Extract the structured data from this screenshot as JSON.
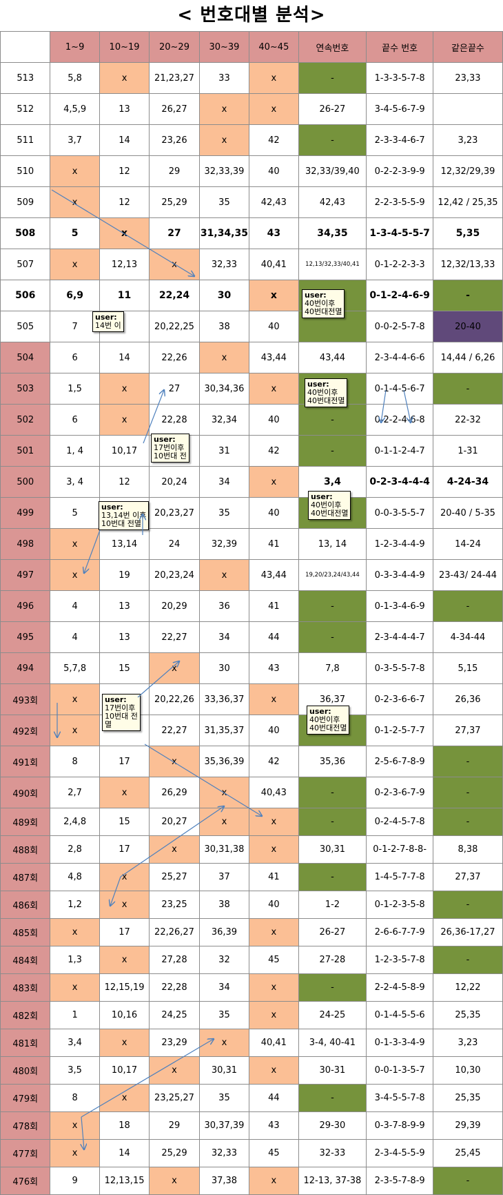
{
  "title": "< 번호대별 분석>",
  "headers": [
    "",
    "1~9",
    "10~19",
    "20~29",
    "30~39",
    "40~45",
    "연속번호",
    "끝수 번호",
    "같은끝수"
  ],
  "rows": [
    {
      "draw": "513",
      "cells": [
        "5,8",
        "x",
        "21,23,27",
        "33",
        "x",
        "-",
        "1-3-3-5-7-8",
        "23,33"
      ],
      "fills": [
        "",
        "p",
        "",
        "",
        "p",
        "g",
        "",
        ""
      ]
    },
    {
      "draw": "512",
      "cells": [
        "4,5,9",
        "13",
        "26,27",
        "x",
        "x",
        "26-27",
        "3-4-5-6-7-9",
        ""
      ],
      "fills": [
        "",
        "",
        "",
        "p",
        "p",
        "",
        "",
        ""
      ]
    },
    {
      "draw": "511",
      "cells": [
        "3,7",
        "14",
        "23,26",
        "x",
        "42",
        "-",
        "2-3-3-4-6-7",
        "3,23"
      ],
      "fills": [
        "",
        "",
        "",
        "p",
        "",
        "g",
        "",
        ""
      ]
    },
    {
      "draw": "510",
      "cells": [
        "x",
        "12",
        "29",
        "32,33,39",
        "40",
        "32,33/39,40",
        "0-2-2-3-9-9",
        "12,32/29,39"
      ],
      "fills": [
        "p",
        "",
        "",
        "",
        "",
        "",
        "",
        ""
      ]
    },
    {
      "draw": "509",
      "cells": [
        "x",
        "12",
        "25,29",
        "35",
        "42,43",
        "42,43",
        "2-2-3-5-5-9",
        "12,42 / 25,35"
      ],
      "fills": [
        "p",
        "",
        "",
        "",
        "",
        "",
        "",
        ""
      ]
    },
    {
      "draw": "508",
      "cells": [
        "5",
        "x",
        "27",
        "31,34,35",
        "43",
        "34,35",
        "1-3-4-5-5-7",
        "5,35"
      ],
      "fills": [
        "",
        "p",
        "",
        "",
        "",
        "",
        "",
        ""
      ],
      "bold": true
    },
    {
      "draw": "507",
      "cells": [
        "x",
        "12,13",
        "x",
        "32,33",
        "40,41",
        "12,13/32,33/40,41",
        "0-1-2-2-3-3",
        "12,32/13,33"
      ],
      "fills": [
        "p",
        "",
        "p",
        "",
        "",
        "",
        "",
        ""
      ],
      "small": [
        5
      ]
    },
    {
      "draw": "506",
      "cells": [
        "6,9",
        "11",
        "22,24",
        "30",
        "x",
        "",
        "0-1-2-4-6-9",
        "-"
      ],
      "fills": [
        "",
        "",
        "",
        "",
        "p",
        "g",
        "",
        "g"
      ],
      "bold": true
    },
    {
      "draw": "505",
      "cells": [
        "7",
        "",
        "20,22,25",
        "38",
        "40",
        "",
        "0-0-2-5-7-8",
        "20-40"
      ],
      "fills": [
        "",
        "",
        "",
        "",
        "",
        "g",
        "",
        "v"
      ]
    },
    {
      "draw": "504",
      "cells": [
        "6",
        "14",
        "22,26",
        "x",
        "43,44",
        "43,44",
        "2-3-4-4-6-6",
        "14,44 / 6,26"
      ],
      "fills": [
        "",
        "",
        "",
        "p",
        "",
        "",
        "",
        ""
      ],
      "pink": true
    },
    {
      "draw": "503",
      "cells": [
        "1,5",
        "x",
        "27",
        "30,34,36",
        "x",
        "",
        "0-1-4-5-6-7",
        "-"
      ],
      "fills": [
        "",
        "p",
        "",
        "",
        "p",
        "g",
        "",
        "g"
      ],
      "pink": true
    },
    {
      "draw": "502",
      "cells": [
        "6",
        "x",
        "22,28",
        "32,34",
        "40",
        "-",
        "0-2-2-4-6-8",
        "22-32"
      ],
      "fills": [
        "",
        "p",
        "",
        "",
        "",
        "g",
        "",
        ""
      ],
      "pink": true
    },
    {
      "draw": "501",
      "cells": [
        "1,  4",
        "10,17",
        "",
        "31",
        "42",
        "-",
        "0-1-1-2-4-7",
        "1-31"
      ],
      "fills": [
        "",
        "",
        "",
        "",
        "",
        "g",
        "",
        ""
      ],
      "pink": true
    },
    {
      "draw": "500",
      "cells": [
        "3,  4",
        "12",
        "20,24",
        "34",
        "x",
        "3,4",
        "0-2-3-4-4-4",
        "4-24-34"
      ],
      "fills": [
        "",
        "",
        "",
        "",
        "p",
        "",
        "",
        ""
      ],
      "pink": true,
      "boldcols": [
        5,
        6,
        7
      ]
    },
    {
      "draw": "499",
      "cells": [
        "5",
        "",
        "20,23,27",
        "35",
        "40",
        "",
        "0-0-3-5-5-7",
        "20-40 / 5-35"
      ],
      "fills": [
        "",
        "",
        "",
        "",
        "",
        "g",
        "",
        ""
      ],
      "pink": true
    },
    {
      "draw": "498",
      "cells": [
        "x",
        "13,14",
        "24",
        "32,39",
        "41",
        "13, 14",
        "1-2-3-4-4-9",
        "14-24"
      ],
      "fills": [
        "p",
        "",
        "",
        "",
        "",
        "",
        "",
        ""
      ],
      "pink": true
    },
    {
      "draw": "497",
      "cells": [
        "x",
        "19",
        "20,23,24",
        "x",
        "43,44",
        "19,20/23,24/43,44",
        "0-3-3-4-4-9",
        "23-43/ 24-44"
      ],
      "fills": [
        "p",
        "",
        "",
        "p",
        "",
        "",
        "",
        ""
      ],
      "pink": true,
      "small": [
        5
      ]
    },
    {
      "draw": "496",
      "cells": [
        "4",
        "13",
        "20,29",
        "36",
        "41",
        "-",
        "0-1-3-4-6-9",
        "-"
      ],
      "fills": [
        "",
        "",
        "",
        "",
        "",
        "g",
        "",
        "g"
      ],
      "pink": true
    },
    {
      "draw": "495",
      "cells": [
        "4",
        "13",
        "22,27",
        "34",
        "44",
        "-",
        "2-3-4-4-4-7",
        "4-34-44"
      ],
      "fills": [
        "",
        "",
        "",
        "",
        "",
        "g",
        "",
        ""
      ],
      "pink": true
    },
    {
      "draw": "494",
      "cells": [
        "5,7,8",
        "15",
        "x",
        "30",
        "43",
        "7,8",
        "0-3-5-5-7-8",
        "5,15"
      ],
      "fills": [
        "",
        "",
        "p",
        "",
        "",
        "",
        "",
        ""
      ],
      "pink": true
    },
    {
      "draw": "493회",
      "cells": [
        "x",
        "",
        "20,22,26",
        "33,36,37",
        "x",
        "36,37",
        "0-2-3-6-6-7",
        "26,36"
      ],
      "fills": [
        "p",
        "",
        "",
        "",
        "p",
        "",
        "",
        ""
      ],
      "pink": true
    },
    {
      "draw": "492회",
      "cells": [
        "x",
        "",
        "22,27",
        "31,35,37",
        "40",
        "",
        "0-1-2-5-7-7",
        "27,37"
      ],
      "fills": [
        "p",
        "",
        "",
        "",
        "",
        "g",
        "",
        ""
      ],
      "pink": true
    },
    {
      "draw": "491회",
      "cells": [
        "8",
        "17",
        "x",
        "35,36,39",
        "42",
        "35,36",
        "2-5-6-7-8-9",
        "-"
      ],
      "fills": [
        "",
        "",
        "p",
        "",
        "",
        "",
        "",
        "g"
      ],
      "pink": true
    },
    {
      "draw": "490회",
      "cells": [
        "2,7",
        "x",
        "26,29",
        "x",
        "40,43",
        "-",
        "0-2-3-6-7-9",
        "-"
      ],
      "fills": [
        "",
        "p",
        "",
        "p",
        "",
        "g",
        "",
        "g"
      ],
      "pink": true
    },
    {
      "draw": "489회",
      "cells": [
        "2,4,8",
        "15",
        "20,27",
        "x",
        "x",
        "-",
        "0-2-4-5-7-8",
        "-"
      ],
      "fills": [
        "",
        "",
        "",
        "p",
        "p",
        "g",
        "",
        "g"
      ],
      "pink": true
    },
    {
      "draw": "488회",
      "cells": [
        "2,8",
        "17",
        "x",
        "30,31,38",
        "x",
        "30,31",
        "0-1-2-7-8-8-",
        "8,38"
      ],
      "fills": [
        "",
        "",
        "p",
        "",
        "p",
        "",
        "",
        ""
      ],
      "pink": true
    },
    {
      "draw": "487회",
      "cells": [
        "4,8",
        "x",
        "25,27",
        "37",
        "41",
        "-",
        "1-4-5-7-7-8",
        "27,37"
      ],
      "fills": [
        "",
        "p",
        "",
        "",
        "",
        "g",
        "",
        ""
      ],
      "pink": true
    },
    {
      "draw": "486회",
      "cells": [
        "1,2",
        "x",
        "23,25",
        "38",
        "40",
        "1-2",
        "0-1-2-3-5-8",
        "-"
      ],
      "fills": [
        "",
        "p",
        "",
        "",
        "",
        "",
        "",
        "g"
      ],
      "pink": true
    },
    {
      "draw": "485회",
      "cells": [
        "x",
        "17",
        "22,26,27",
        "36,39",
        "x",
        "26-27",
        "2-6-6-7-7-9",
        "26,36-17,27"
      ],
      "fills": [
        "p",
        "",
        "",
        "",
        "p",
        "",
        "",
        ""
      ],
      "pink": true
    },
    {
      "draw": "484회",
      "cells": [
        "1,3",
        "x",
        "27,28",
        "32",
        "45",
        "27-28",
        "1-2-3-5-7-8",
        "-"
      ],
      "fills": [
        "",
        "p",
        "",
        "",
        "",
        "",
        "",
        "g"
      ],
      "pink": true
    },
    {
      "draw": "483회",
      "cells": [
        "x",
        "12,15,19",
        "22,28",
        "34",
        "x",
        "-",
        "2-2-4-5-8-9",
        "12,22"
      ],
      "fills": [
        "p",
        "",
        "",
        "",
        "p",
        "g",
        "",
        ""
      ],
      "pink": true
    },
    {
      "draw": "482회",
      "cells": [
        "1",
        "10,16",
        "24,25",
        "35",
        "x",
        "24-25",
        "0-1-4-5-5-6",
        "25,35"
      ],
      "fills": [
        "",
        "",
        "",
        "",
        "p",
        "",
        "",
        ""
      ],
      "pink": true
    },
    {
      "draw": "481회",
      "cells": [
        "3,4",
        "x",
        "23,29",
        "x",
        "40,41",
        "3-4, 40-41",
        "0-1-3-3-4-9",
        "3,23"
      ],
      "fills": [
        "",
        "p",
        "",
        "p",
        "",
        "",
        "",
        ""
      ],
      "pink": true
    },
    {
      "draw": "480회",
      "cells": [
        "3,5",
        "10,17",
        "x",
        "30,31",
        "x",
        "30-31",
        "0-0-1-3-5-7",
        "10,30"
      ],
      "fills": [
        "",
        "",
        "p",
        "",
        "p",
        "",
        "",
        ""
      ],
      "pink": true
    },
    {
      "draw": "479회",
      "cells": [
        "8",
        "x",
        "23,25,27",
        "35",
        "44",
        "-",
        "3-4-5-5-7-8",
        "25,35"
      ],
      "fills": [
        "",
        "p",
        "",
        "",
        "",
        "g",
        "",
        ""
      ],
      "pink": true
    },
    {
      "draw": "478회",
      "cells": [
        "x",
        "18",
        "29",
        "30,37,39",
        "43",
        "29-30",
        "0-3-7-8-9-9",
        "29,39"
      ],
      "fills": [
        "p",
        "",
        "",
        "",
        "",
        "",
        "",
        ""
      ],
      "pink": true
    },
    {
      "draw": "477회",
      "cells": [
        "x",
        "14",
        "25,29",
        "32,33",
        "45",
        "32-33",
        "2-3-4-5-5-9",
        "25,45"
      ],
      "fills": [
        "p",
        "",
        "",
        "",
        "",
        "",
        "",
        ""
      ],
      "pink": true
    },
    {
      "draw": "476회",
      "cells": [
        "9",
        "12,13,15",
        "x",
        "37,38",
        "x",
        "12-13, 37-38",
        "2-3-5-7-8-9",
        "-"
      ],
      "fills": [
        "",
        "",
        "p",
        "",
        "p",
        "",
        "",
        "g"
      ],
      "pink": true
    }
  ],
  "notes": [
    {
      "user": "user:",
      "lines": [
        "14번 이"
      ]
    },
    {
      "user": "user:",
      "lines": [
        "40번이후",
        "40번대전멸"
      ]
    },
    {
      "user": "user:",
      "lines": [
        "40번이후",
        "40번대전멸"
      ]
    },
    {
      "user": "user:",
      "lines": [
        "17번이후",
        "  10번대 전"
      ]
    },
    {
      "user": "user:",
      "lines": [
        "40번이후",
        "40번대전멸"
      ]
    },
    {
      "user": "user:",
      "lines": [
        "13,14번 이후",
        "10번대 전멸"
      ]
    },
    {
      "user": "user:",
      "lines": [
        "17번이후",
        "10번대 전",
        "멸"
      ]
    },
    {
      "user": "user:",
      "lines": [
        "40번이후",
        "40번대전멸"
      ]
    }
  ],
  "colors": {
    "pink": "#da9694",
    "peach": "#fbbf95",
    "green": "#76933c",
    "purple": "#60497a",
    "arrow": "#4f81bd"
  }
}
